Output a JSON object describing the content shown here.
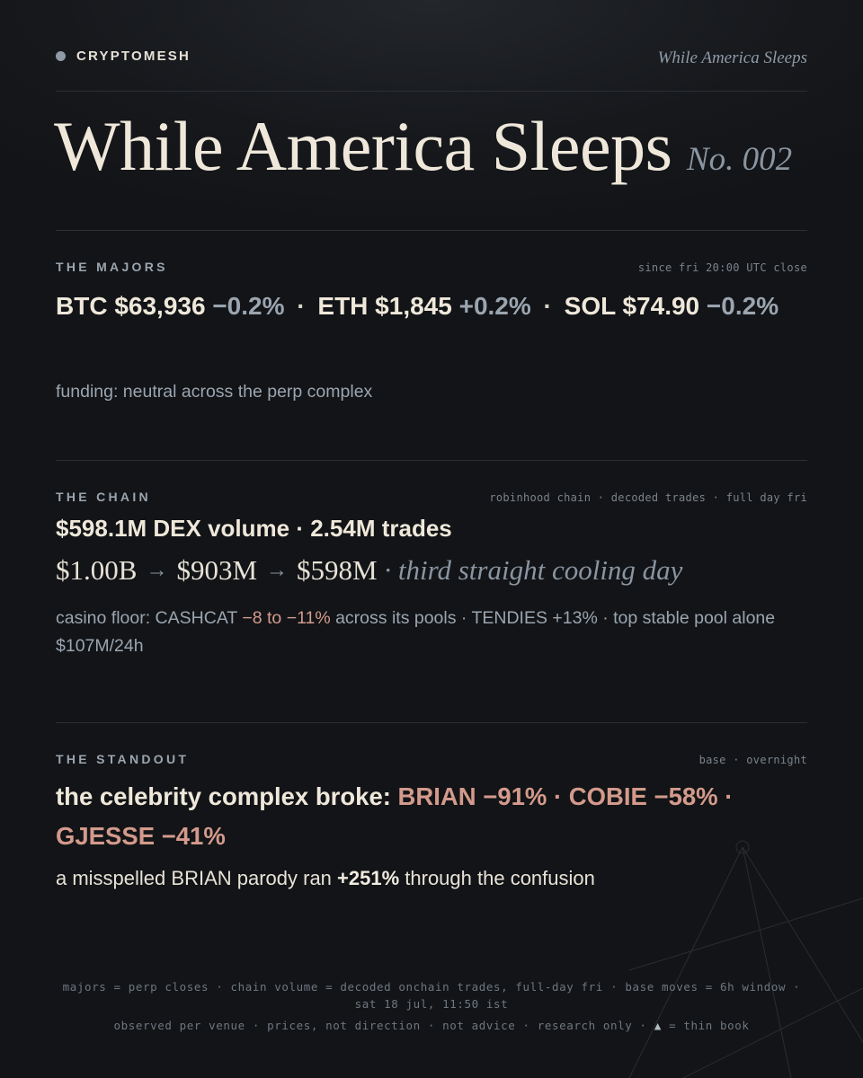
{
  "brand": {
    "name": "CRYPTOMESH",
    "kicker": "While America Sleeps"
  },
  "headline": {
    "title": "While America Sleeps",
    "issue": "No. 002"
  },
  "majors": {
    "label": "THE MAJORS",
    "meta": "since fri 20:00 UTC close",
    "assets": [
      {
        "price": "BTC $63,936",
        "change": "−0.2%"
      },
      {
        "price": "ETH $1,845",
        "change": "+0.2%"
      },
      {
        "price": "SOL $74.90",
        "change": "−0.2%"
      }
    ],
    "separator": "·",
    "funding": "funding: neutral across the perp complex"
  },
  "chain": {
    "label": "THE CHAIN",
    "meta": "robinhood chain · decoded trades · full day fri",
    "headline": "$598.1M DEX volume · 2.54M trades",
    "flow": [
      "$1.00B",
      "$903M",
      "$598M"
    ],
    "arrow": "→",
    "flow_note": "· third straight cooling day",
    "casino_prefix": "casino floor: CASHCAT ",
    "casino_red": "−8 to −11%",
    "casino_suffix": " across its pools · TENDIES +13% · top stable pool alone $107M/24h"
  },
  "standout": {
    "label": "THE STANDOUT",
    "meta": "base · overnight",
    "lead": "the celebrity complex broke: ",
    "moves": "BRIAN −91% · COBIE −58% · GJESSE −41%",
    "sub_prefix": "a misspelled BRIAN parody ran ",
    "sub_bold": "+251%",
    "sub_suffix": " through the confusion"
  },
  "footer": {
    "line1": "majors = perp closes · chain volume = decoded onchain trades, full-day fri · base moves = 6h window · sat 18 jul, 11:50 ist",
    "line2_prefix": "observed per venue · prices, not direction · not advice · research only · ",
    "warn_icon": "▲",
    "line2_suffix": " = thin book"
  },
  "colors": {
    "background": "#131518",
    "accent_red": "#d49a8c",
    "muted": "#9ba5b0",
    "cream": "#efe8da"
  }
}
